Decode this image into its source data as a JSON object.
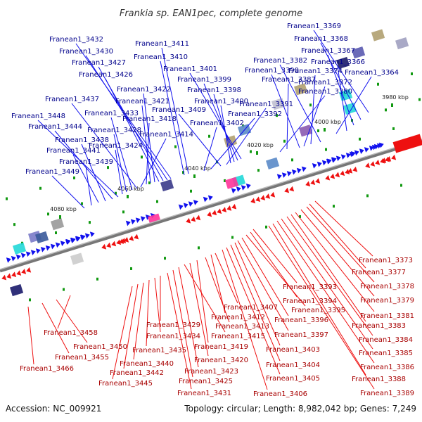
{
  "title": "Frankia sp. EAN1pec, complete genome",
  "accession": "Accession: NC_009921",
  "summary": "Topology: circular; Length: 8,982,042 bp; Genes: 7,249",
  "scale_labels": [
    "3980 kbp",
    "4000 kbp",
    "4020 kbp",
    "4040 kbp",
    "4060 kbp",
    "4080 kbp"
  ],
  "forward_genes": [
    "Franean1_3369",
    "Franean1_3368",
    "Franean1_3367",
    "Franean1_3366",
    "Franean1_3364",
    "Franean1_3382",
    "Franean1_3374",
    "Franean1_3372",
    "Franean1_3390",
    "Franean1_3387",
    "Franean1_3380",
    "Franean1_3401",
    "Franean1_3399",
    "Franean1_3398",
    "Franean1_3400",
    "Franean1_3391",
    "Franean1_3409",
    "Franean1_3392",
    "Franean1_3402",
    "Franean1_3411",
    "Franean1_3410",
    "Franean1_3432",
    "Franean1_3430",
    "Franean1_3427",
    "Franean1_3426",
    "Franean1_3422",
    "Franean1_3421",
    "Franean1_3418",
    "Franean1_3414",
    "Franean1_3437",
    "Franean1_3433",
    "Franean1_3428",
    "Franean1_3424",
    "Franean1_3448",
    "Franean1_3444",
    "Franean1_3438",
    "Franean1_3441",
    "Franean1_3439",
    "Franean1_3449"
  ],
  "reverse_genes": [
    "Franean1_3373",
    "Franean1_3377",
    "Franean1_3378",
    "Franean1_3379",
    "Franean1_3381",
    "Franean1_3383",
    "Franean1_3384",
    "Franean1_3385",
    "Franean1_3386",
    "Franean1_3388",
    "Franean1_3389",
    "Franean1_3393",
    "Franean1_3394",
    "Franean1_3395",
    "Franean1_3396",
    "Franean1_3397",
    "Franean1_3403",
    "Franean1_3404",
    "Franean1_3405",
    "Franean1_3406",
    "Franean1_3407",
    "Franean1_3412",
    "Franean1_3413",
    "Franean1_3419",
    "Franean1_3420",
    "Franean1_3415",
    "Franean1_3423",
    "Franean1_3425",
    "Franean1_3431",
    "Franean1_3429",
    "Franean1_3434",
    "Franean1_3435",
    "Franean1_3440",
    "Franean1_3442",
    "Franean1_3445",
    "Franean1_3458",
    "Franean1_3450",
    "Franean1_3455",
    "Franean1_3466"
  ],
  "colors": {
    "forward": "#1010ee",
    "reverse": "#ee1010",
    "label_forward": "#00008b",
    "label_reverse": "#a80000",
    "backbone": "#888888"
  }
}
